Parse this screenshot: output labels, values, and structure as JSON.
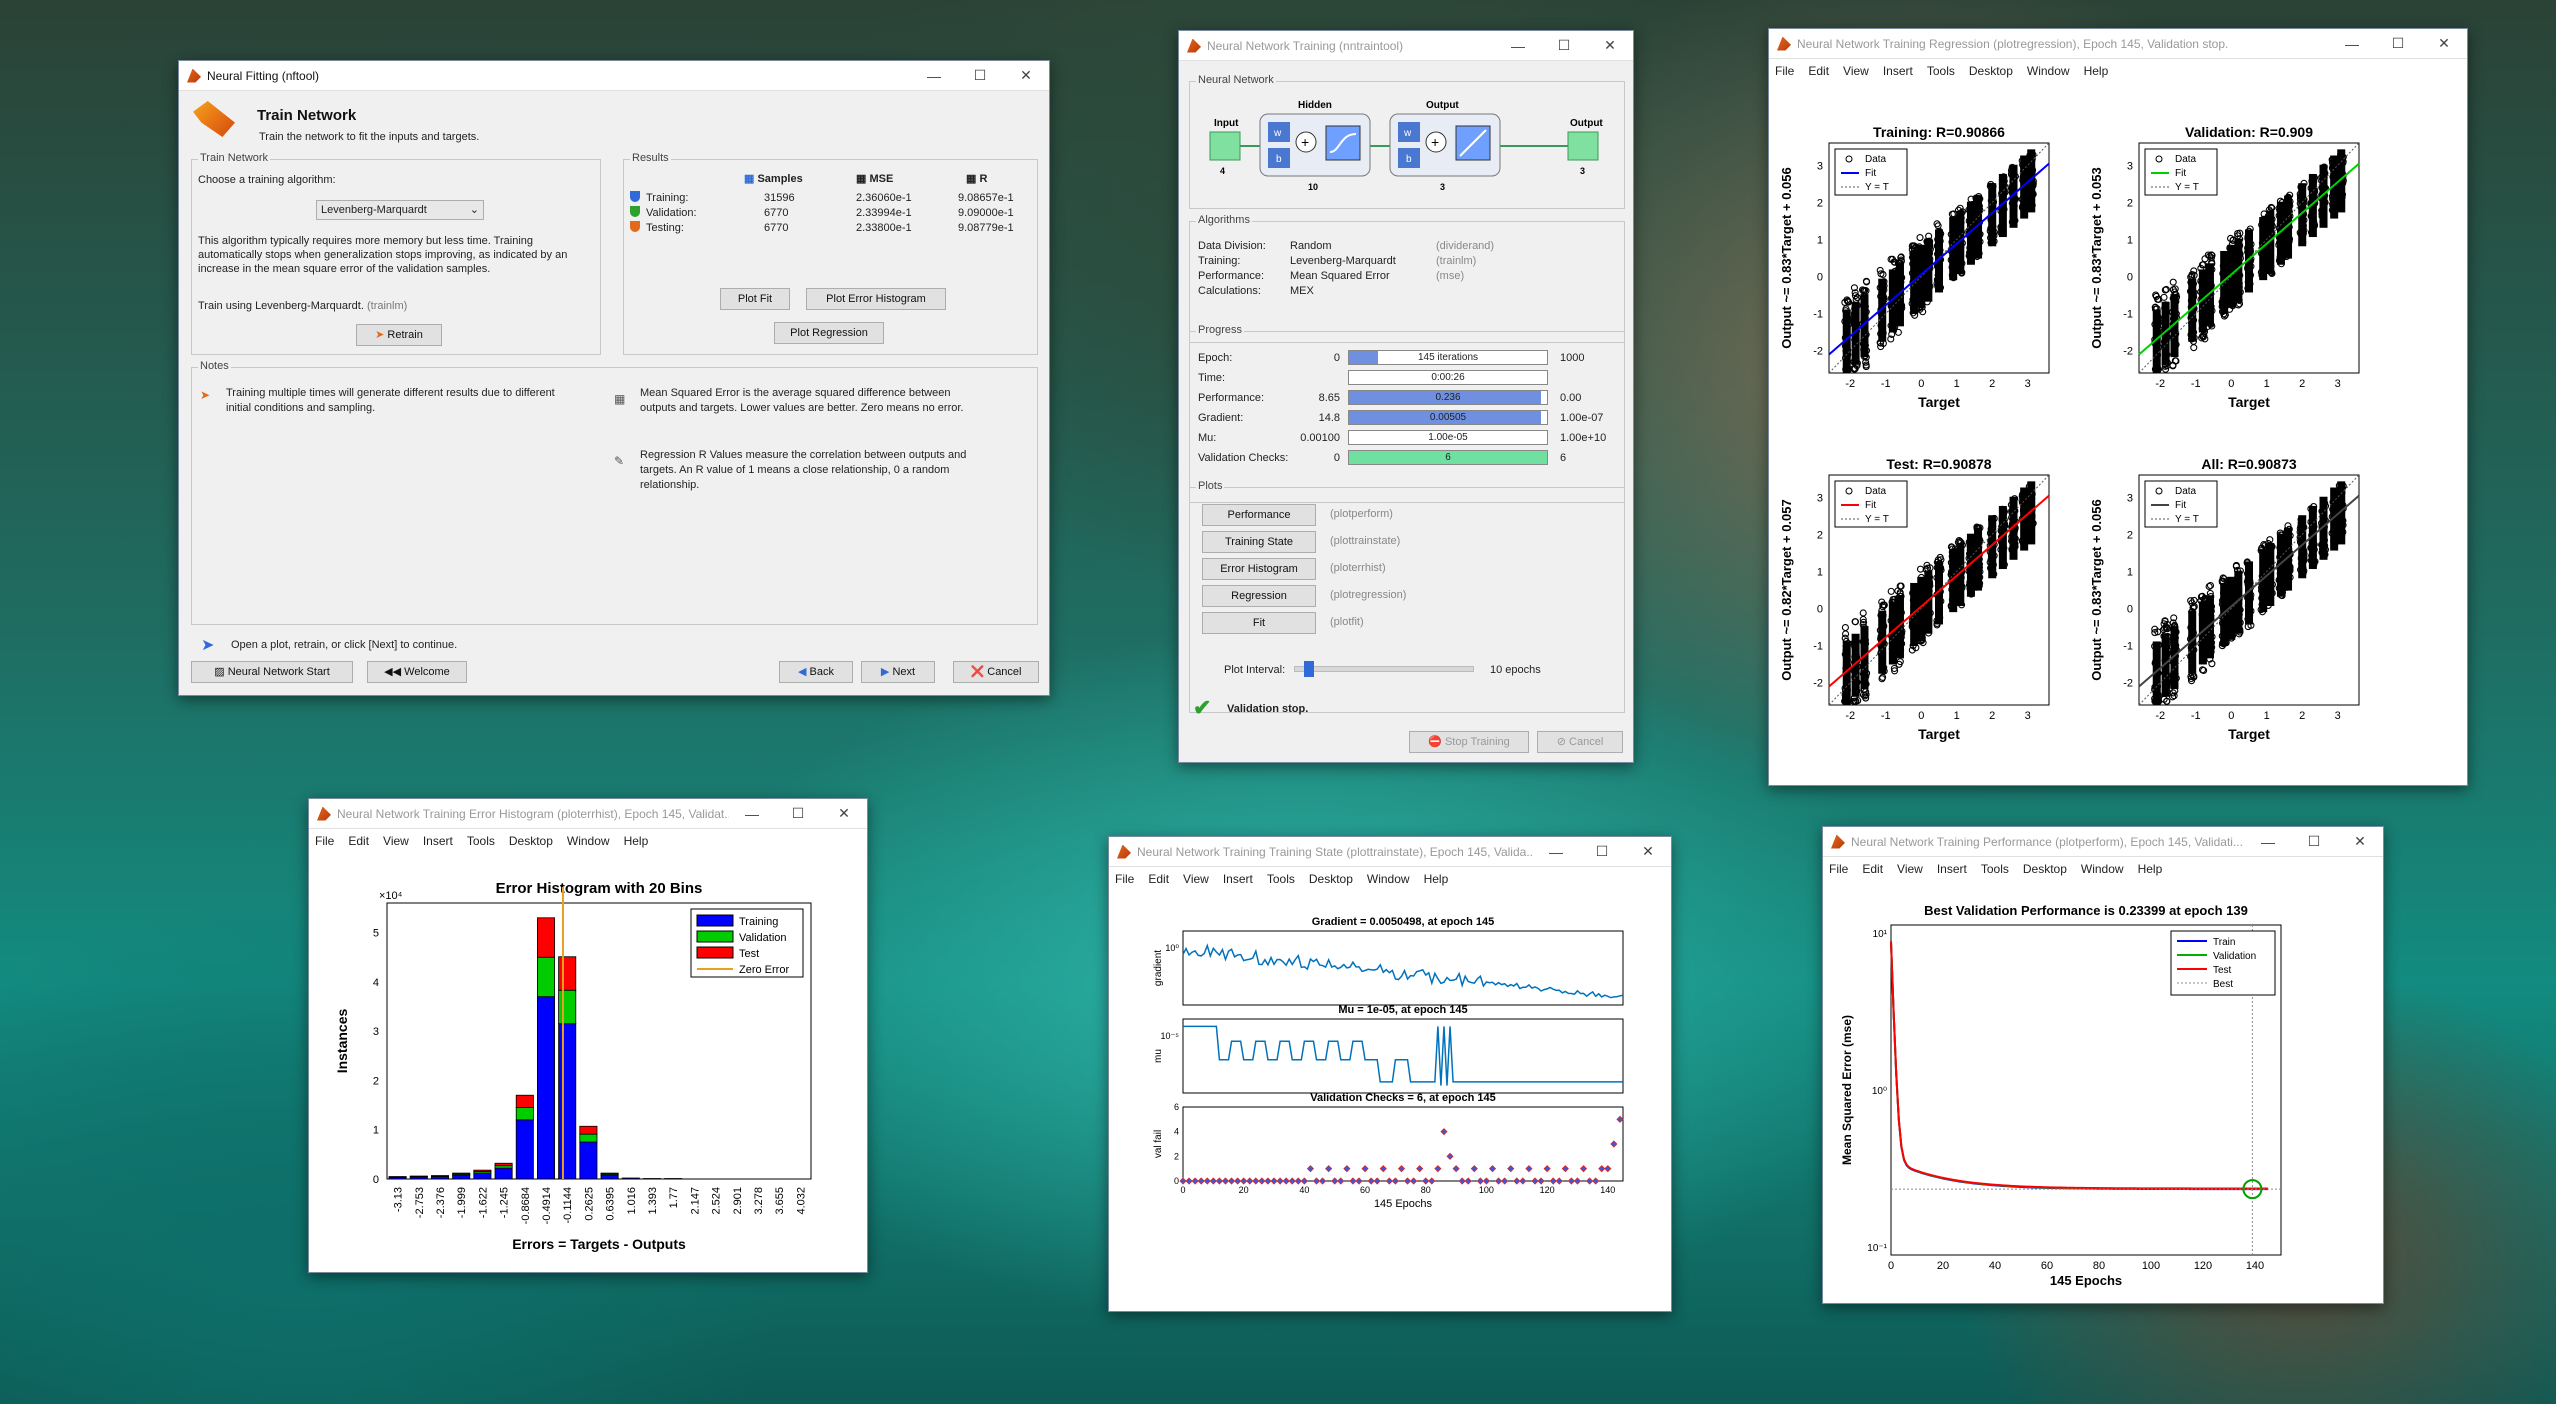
{
  "nftool": {
    "title": "Neural Fitting (nftool)",
    "header": "Train Network",
    "subheader": "Train the network to fit the inputs and targets.",
    "train_group": "Train Network",
    "choose_label": "Choose a training algorithm:",
    "algorithm": "Levenberg-Marquardt",
    "desc": "This algorithm typically requires more memory but less time. Training automatically stops when generalization stops improving, as indicated by an increase in the mean square error of the validation samples.",
    "train_using": "Train using Levenberg-Marquardt.",
    "train_fn": "(trainlm)",
    "retrain": "Retrain",
    "results_group": "Results",
    "col_samples": "Samples",
    "col_mse": "MSE",
    "col_r": "R",
    "rows": [
      {
        "label": "Training:",
        "samples": "31596",
        "mse": "2.36060e-1",
        "r": "9.08657e-1",
        "color": "#2f6ad8"
      },
      {
        "label": "Validation:",
        "samples": "6770",
        "mse": "2.33994e-1",
        "r": "9.09000e-1",
        "color": "#2ea02e"
      },
      {
        "label": "Testing:",
        "samples": "6770",
        "mse": "2.33800e-1",
        "r": "9.08779e-1",
        "color": "#e26a1a"
      }
    ],
    "plot_fit": "Plot Fit",
    "plot_errhist": "Plot Error Histogram",
    "plot_reg": "Plot Regression",
    "notes_group": "Notes",
    "note1": "Training multiple times will generate different results due to different initial conditions and sampling.",
    "note2": "Mean Squared Error is the average squared difference between outputs and targets. Lower values are better. Zero means no error.",
    "note3": "Regression R Values measure the correlation between outputs and targets. An R value of 1 means a close relationship, 0 a random relationship.",
    "hint": "Open a plot, retrain, or click [Next] to continue.",
    "nn_start": "Neural Network Start",
    "welcome": "Welcome",
    "back": "Back",
    "next": "Next",
    "cancel": "Cancel"
  },
  "nntraintool": {
    "title": "Neural Network Training (nntraintool)",
    "nn_group": "Neural Network",
    "input": "Input",
    "input_n": "4",
    "hidden": "Hidden",
    "hidden_n": "10",
    "output_layer": "Output",
    "output_layer_n": "3",
    "output": "Output",
    "output_n": "3",
    "w": "w",
    "b": "b",
    "alg_group": "Algorithms",
    "alg": [
      {
        "k": "Data Division:",
        "v": "Random",
        "f": "(dividerand)"
      },
      {
        "k": "Training:",
        "v": "Levenberg-Marquardt",
        "f": "(trainlm)"
      },
      {
        "k": "Performance:",
        "v": "Mean Squared Error",
        "f": "(mse)"
      },
      {
        "k": "Calculations:",
        "v": "MEX",
        "f": ""
      }
    ],
    "prog_group": "Progress",
    "prog": [
      {
        "k": "Epoch:",
        "start": "0",
        "val": "145 iterations",
        "end": "1000",
        "fill": 0.145,
        "color": "#6f8fe0"
      },
      {
        "k": "Time:",
        "start": "",
        "val": "0:00:26",
        "end": "",
        "fill": 0,
        "color": "#6f8fe0"
      },
      {
        "k": "Performance:",
        "start": "8.65",
        "val": "0.236",
        "end": "0.00",
        "fill": 0.97,
        "color": "#6f8fe0"
      },
      {
        "k": "Gradient:",
        "start": "14.8",
        "val": "0.00505",
        "end": "1.00e-07",
        "fill": 0.97,
        "color": "#6f8fe0"
      },
      {
        "k": "Mu:",
        "start": "0.00100",
        "val": "1.00e-05",
        "end": "1.00e+10",
        "fill": 0.0,
        "color": "#6f8fe0"
      },
      {
        "k": "Validation Checks:",
        "start": "0",
        "val": "6",
        "end": "6",
        "fill": 1.0,
        "color": "#6fe0a0"
      }
    ],
    "plots_group": "Plots",
    "plots": [
      {
        "btn": "Performance",
        "fn": "(plotperform)"
      },
      {
        "btn": "Training State",
        "fn": "(plottrainstate)"
      },
      {
        "btn": "Error Histogram",
        "fn": "(ploterrhist)"
      },
      {
        "btn": "Regression",
        "fn": "(plotregression)"
      },
      {
        "btn": "Fit",
        "fn": "(plotfit)"
      }
    ],
    "interval_label": "Plot Interval:",
    "interval_val": "10 epochs",
    "interval_pos": 0.05,
    "status": "Validation stop.",
    "stop": "Stop Training",
    "cancel": "Cancel"
  },
  "menus": [
    "File",
    "Edit",
    "View",
    "Insert",
    "Tools",
    "Desktop",
    "Window",
    "Help"
  ],
  "regression": {
    "title": "Neural Network Training Regression (plotregression), Epoch 145, Validation stop.",
    "panels": [
      {
        "title": "Training: R=0.90866",
        "ylabel": "Output ~= 0.83*Target + 0.056",
        "color": "#0000ff"
      },
      {
        "title": "Validation: R=0.909",
        "ylabel": "Output ~= 0.83*Target + 0.053",
        "color": "#00d000"
      },
      {
        "title": "Test: R=0.90878",
        "ylabel": "Output ~= 0.82*Target + 0.057",
        "color": "#ff0000"
      },
      {
        "title": "All: R=0.90873",
        "ylabel": "Output ~= 0.83*Target + 0.056",
        "color": "#444444"
      }
    ],
    "xlabel": "Target",
    "legend": [
      "Data",
      "Fit",
      "Y = T"
    ],
    "xticks": [
      "-2",
      "-1",
      "0",
      "1",
      "2",
      "3"
    ],
    "yticks": [
      "-2",
      "-1",
      "0",
      "1",
      "2",
      "3"
    ]
  },
  "histogram": {
    "title": "Neural Network Training Error Histogram (ploterrhist), Epoch 145, Validat...",
    "chart_data": {
      "type": "bar",
      "title": "Error Histogram with 20 Bins",
      "xlabel": "Errors = Targets - Outputs",
      "ylabel": "Instances",
      "y_exponent": "×10⁴",
      "ylim": [
        0,
        5.6
      ],
      "categories": [
        "-3.13",
        "-2.753",
        "-2.376",
        "-1.999",
        "-1.622",
        "-1.245",
        "-0.8684",
        "-0.4914",
        "-0.1144",
        "0.2625",
        "0.6395",
        "1.016",
        "1.393",
        "1.77",
        "2.147",
        "2.524",
        "2.901",
        "3.278",
        "3.655",
        "4.032"
      ],
      "series": [
        {
          "name": "Training",
          "color": "#0000ff",
          "values": [
            0.03,
            0.04,
            0.05,
            0.08,
            0.12,
            0.22,
            1.2,
            3.7,
            3.15,
            0.75,
            0.08,
            0.02,
            0.01,
            0.01,
            0.0,
            0.0,
            0,
            0,
            0,
            0
          ]
        },
        {
          "name": "Validation",
          "color": "#00cc00",
          "values": [
            0.01,
            0.01,
            0.01,
            0.02,
            0.03,
            0.05,
            0.25,
            0.8,
            0.68,
            0.16,
            0.02,
            0,
            0,
            0,
            0,
            0,
            0,
            0,
            0,
            0
          ]
        },
        {
          "name": "Test",
          "color": "#ff0000",
          "values": [
            0.01,
            0.01,
            0.01,
            0.02,
            0.03,
            0.05,
            0.25,
            0.8,
            0.68,
            0.16,
            0.02,
            0,
            0,
            0,
            0,
            0,
            0,
            0,
            0,
            0
          ]
        }
      ],
      "zero_error_label": "Zero Error",
      "yticks": [
        "0",
        "1",
        "2",
        "3",
        "4",
        "5"
      ]
    }
  },
  "trainstate": {
    "title": "Neural Network Training Training State (plottrainstate), Epoch 145, Valida...",
    "chart_data": [
      {
        "type": "line",
        "title": "Gradient = 0.0050498, at epoch 145",
        "ylabel": "gradient",
        "ytick": "10⁰"
      },
      {
        "type": "line",
        "title": "Mu = 1e-05, at epoch 145",
        "ylabel": "mu",
        "ytick": "10⁻⁵"
      },
      {
        "type": "scatter",
        "title": "Validation Checks = 6, at epoch 145",
        "ylabel": "val fail",
        "yticks": [
          "0",
          "2",
          "4",
          "6"
        ]
      }
    ],
    "xlabel": "145 Epochs",
    "xticks": [
      "0",
      "20",
      "40",
      "60",
      "80",
      "100",
      "120",
      "140"
    ]
  },
  "perform": {
    "title": "Neural Network Training Performance (plotperform), Epoch 145, Validati...",
    "chart_data": {
      "type": "line",
      "title": "Best Validation Performance is 0.23399 at epoch 139",
      "xlabel": "145 Epochs",
      "ylabel": "Mean Squared Error  (mse)",
      "legend": [
        "Train",
        "Validation",
        "Test",
        "Best"
      ],
      "legend_colors": [
        "#0000ff",
        "#00b000",
        "#ff0000",
        "#888888"
      ],
      "xticks": [
        "0",
        "20",
        "40",
        "60",
        "80",
        "100",
        "120",
        "140"
      ],
      "yticks": [
        "10¹",
        "10⁰",
        "10⁻¹"
      ],
      "best_epoch": 139,
      "best_value": 0.23399
    }
  }
}
